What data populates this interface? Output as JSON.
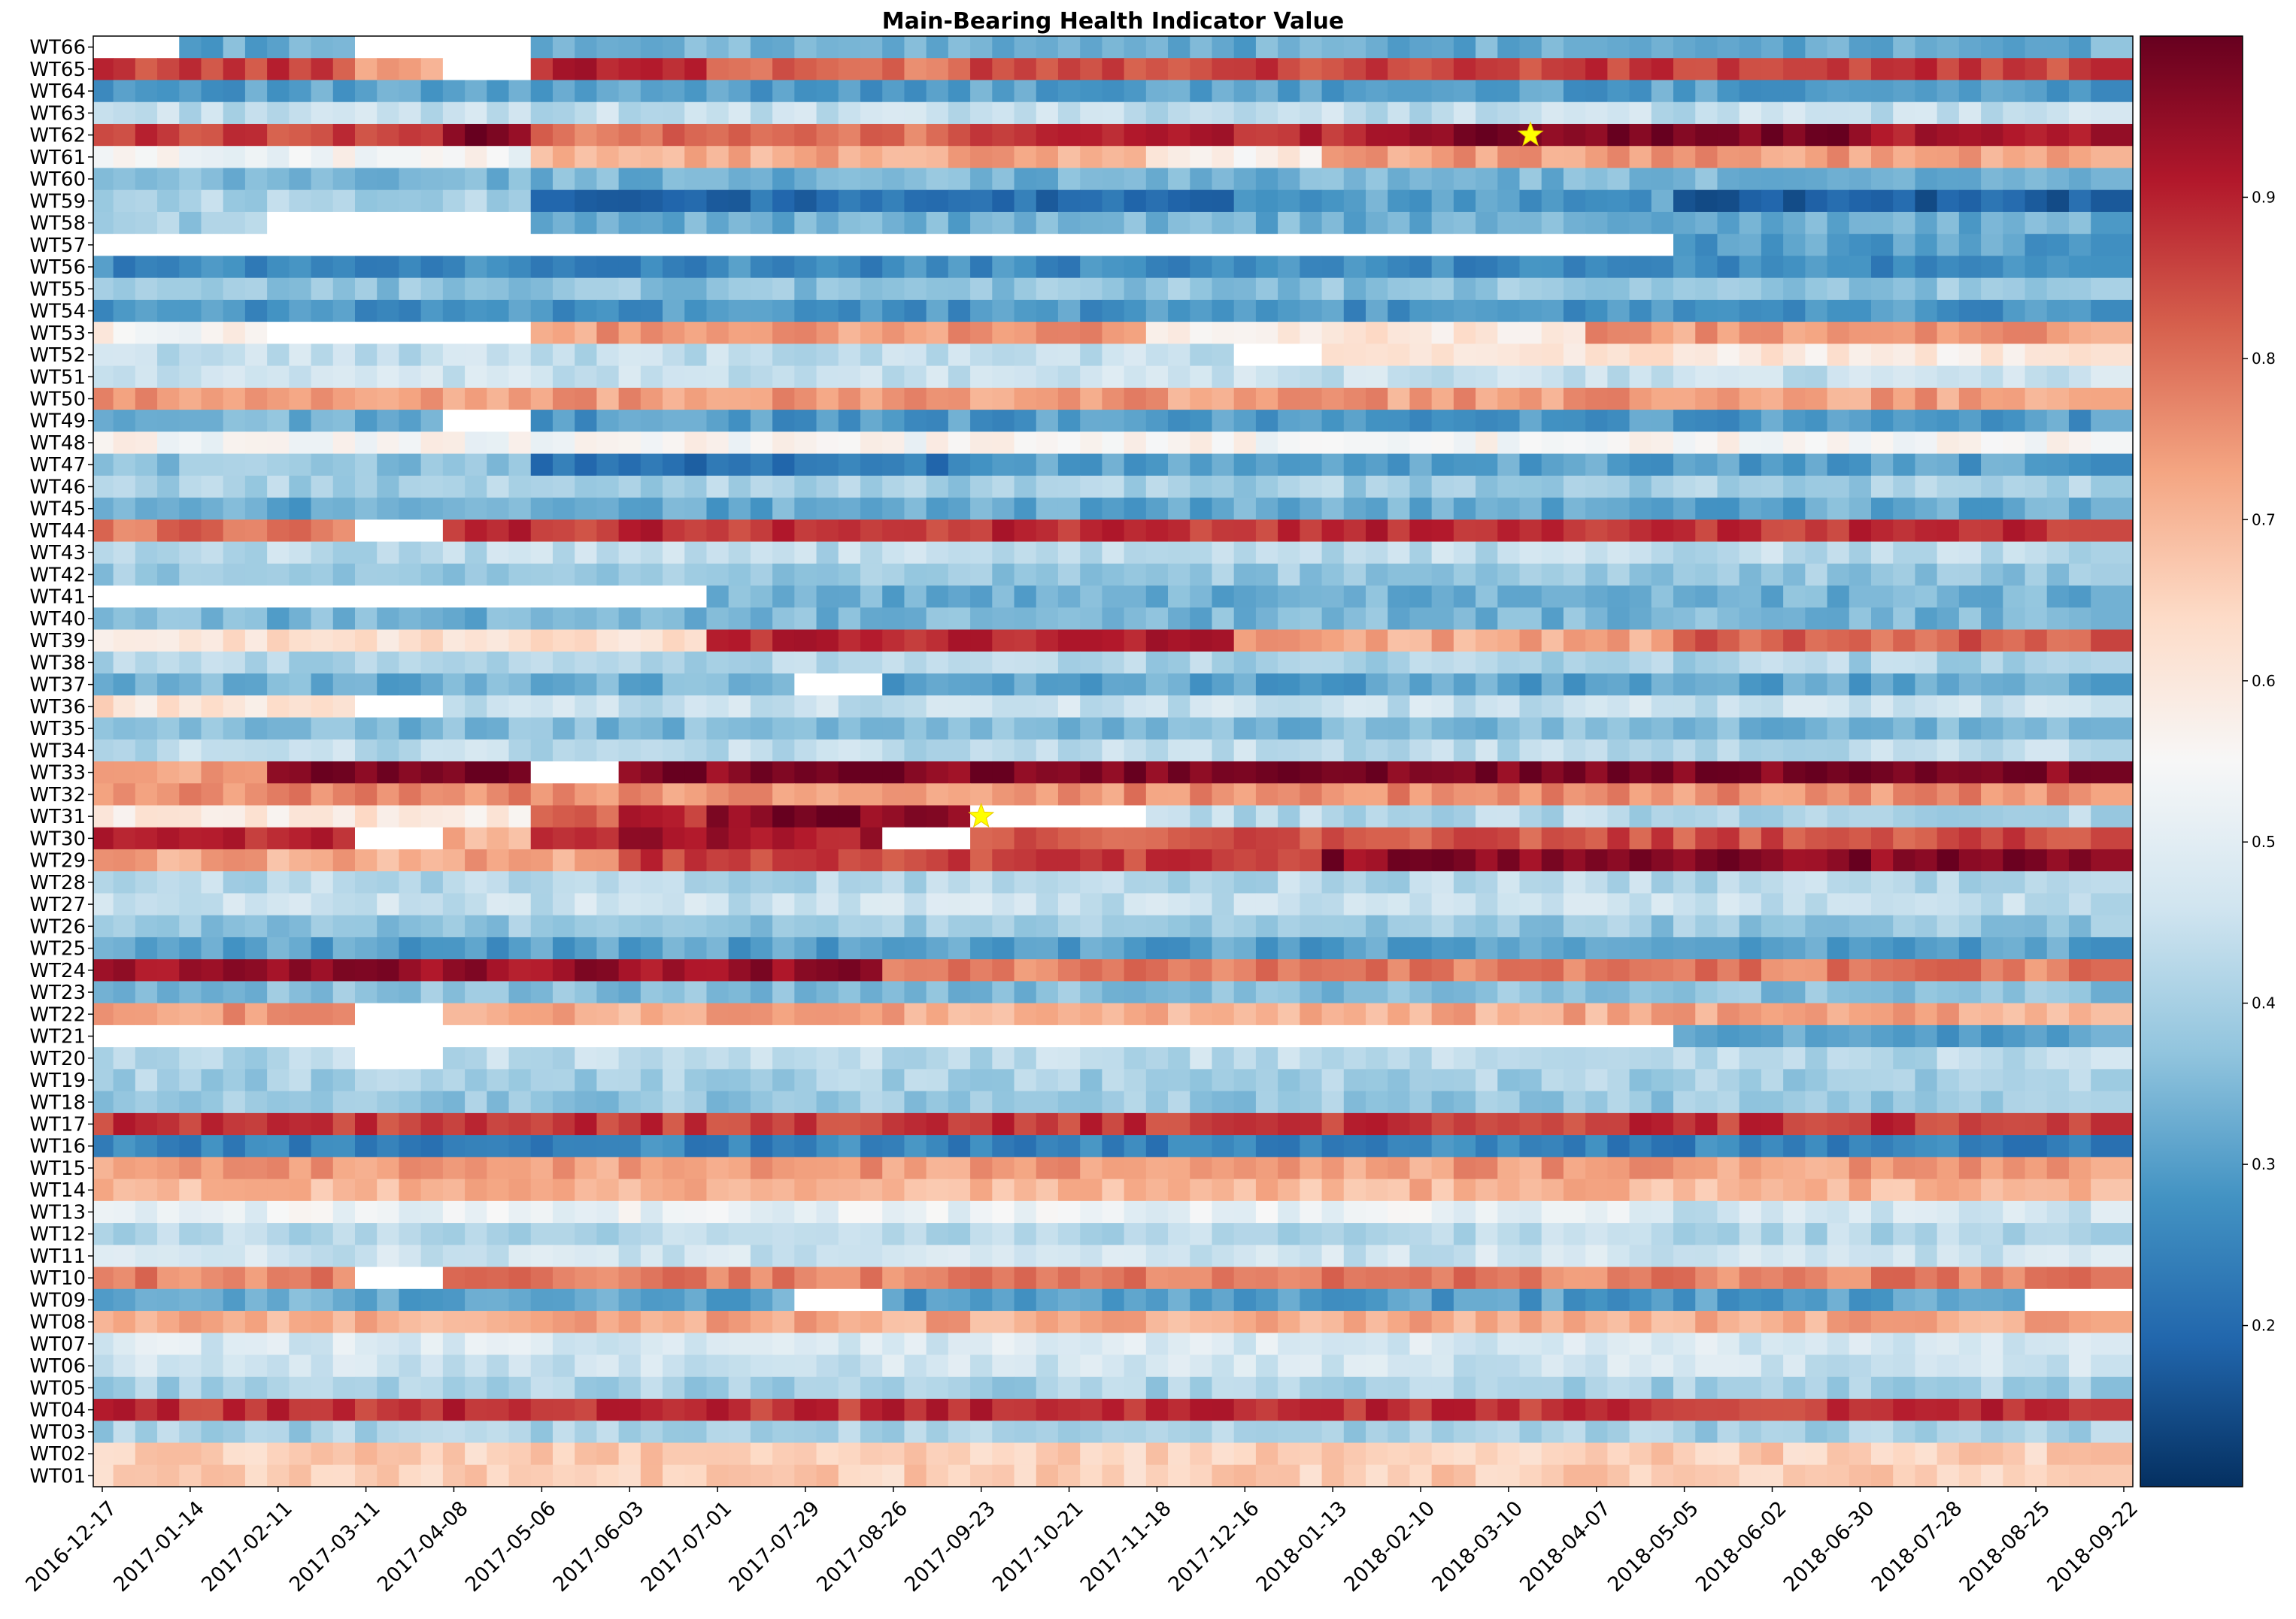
{
  "chart_data": {
    "type": "heatmap",
    "title": "Main-Bearing Health Indicator Value",
    "xlabel": "",
    "ylabel": "",
    "rows_top_to_bottom": [
      "WT66",
      "WT65",
      "WT64",
      "WT63",
      "WT62",
      "WT61",
      "WT60",
      "WT59",
      "WT58",
      "WT57",
      "WT56",
      "WT55",
      "WT54",
      "WT53",
      "WT52",
      "WT51",
      "WT50",
      "WT49",
      "WT48",
      "WT47",
      "WT46",
      "WT45",
      "WT44",
      "WT43",
      "WT42",
      "WT41",
      "WT40",
      "WT39",
      "WT38",
      "WT37",
      "WT36",
      "WT35",
      "WT34",
      "WT33",
      "WT32",
      "WT31",
      "WT30",
      "WT29",
      "WT28",
      "WT27",
      "WT26",
      "WT25",
      "WT24",
      "WT23",
      "WT22",
      "WT21",
      "WT20",
      "WT19",
      "WT18",
      "WT17",
      "WT16",
      "WT15",
      "WT14",
      "WT13",
      "WT12",
      "WT11",
      "WT10",
      "WT09",
      "WT08",
      "WT07",
      "WT06",
      "WT05",
      "WT04",
      "WT03",
      "WT02",
      "WT01"
    ],
    "x_tick_labels": [
      "2016-12-17",
      "2017-01-14",
      "2017-02-11",
      "2017-03-11",
      "2017-04-08",
      "2017-05-06",
      "2017-06-03",
      "2017-07-01",
      "2017-07-29",
      "2017-08-26",
      "2017-09-23",
      "2017-10-21",
      "2017-11-18",
      "2017-12-16",
      "2018-01-13",
      "2018-02-10",
      "2018-03-10",
      "2018-04-07",
      "2018-05-05",
      "2018-06-02",
      "2018-06-30",
      "2018-07-28",
      "2018-08-25",
      "2018-09-22"
    ],
    "x_start": "2016-12-17",
    "x_end": "2018-09-22",
    "colormap": "RdBu_r",
    "colorbar": {
      "min": 0.1,
      "max": 1.0,
      "ticks": [
        0.2,
        0.3,
        0.4,
        0.5,
        0.6,
        0.7,
        0.8,
        0.9
      ],
      "tick_labels": [
        "0.2",
        "0.3",
        "0.4",
        "0.5",
        "0.6",
        "0.7",
        "0.8",
        "0.9"
      ],
      "stops": [
        "#053061",
        "#2166ac",
        "#4393c3",
        "#92c5de",
        "#d1e5f0",
        "#f7f7f7",
        "#fddbc7",
        "#f4a582",
        "#d6604d",
        "#b2182b",
        "#67001f"
      ]
    },
    "missing_color": "#ffffff",
    "markers": [
      {
        "turbine": "WT62",
        "date": "2018-03-17",
        "symbol": "star",
        "color": "#ffff00"
      },
      {
        "turbine": "WT31",
        "date": "2017-09-23",
        "symbol": "star",
        "color": "#ffff00"
      }
    ],
    "row_segments": {
      "WT66": [
        [
          "2016-12-17",
          "2017-01-14",
          null
        ],
        [
          "2017-01-14",
          "2017-03-11",
          0.32
        ],
        [
          "2017-03-11",
          "2017-05-06",
          null
        ],
        [
          "2017-05-06",
          "2018-09-22",
          0.33
        ]
      ],
      "WT65": [
        [
          "2016-12-17",
          "2017-03-11",
          0.86
        ],
        [
          "2017-03-11",
          "2017-04-08",
          0.74
        ],
        [
          "2017-04-08",
          "2017-05-06",
          null
        ],
        [
          "2017-05-06",
          "2017-07-01",
          0.9
        ],
        [
          "2017-07-01",
          "2017-09-23",
          0.8
        ],
        [
          "2017-09-23",
          "2018-09-22",
          0.86
        ]
      ],
      "WT64": [
        [
          "2016-12-17",
          "2018-09-22",
          0.3
        ]
      ],
      "WT63": [
        [
          "2016-12-17",
          "2018-09-22",
          0.44
        ]
      ],
      "WT62": [
        [
          "2016-12-17",
          "2017-04-08",
          0.86
        ],
        [
          "2017-04-08",
          "2017-05-06",
          0.97
        ],
        [
          "2017-05-06",
          "2017-09-23",
          0.8
        ],
        [
          "2017-09-23",
          "2018-02-10",
          0.9
        ],
        [
          "2018-02-10",
          "2018-06-30",
          0.98
        ],
        [
          "2018-06-30",
          "2018-09-22",
          0.93
        ]
      ],
      "WT61": [
        [
          "2016-12-17",
          "2017-05-06",
          0.54
        ],
        [
          "2017-05-06",
          "2017-11-18",
          0.72
        ],
        [
          "2017-11-18",
          "2018-01-13",
          0.58
        ],
        [
          "2018-01-13",
          "2018-09-22",
          0.74
        ]
      ],
      "WT60": [
        [
          "2016-12-17",
          "2018-09-22",
          0.34
        ]
      ],
      "WT59": [
        [
          "2016-12-17",
          "2017-05-06",
          0.41
        ],
        [
          "2017-05-06",
          "2017-12-16",
          0.2
        ],
        [
          "2017-12-16",
          "2018-05-05",
          0.3
        ],
        [
          "2018-05-05",
          "2018-09-22",
          0.18
        ]
      ],
      "WT58": [
        [
          "2016-12-17",
          "2017-02-11",
          0.4
        ],
        [
          "2017-02-11",
          "2017-05-06",
          null
        ],
        [
          "2017-05-06",
          "2018-09-22",
          0.33
        ]
      ],
      "WT57": [
        [
          "2016-12-17",
          "2018-05-05",
          null
        ],
        [
          "2018-05-05",
          "2018-09-22",
          0.3
        ]
      ],
      "WT56": [
        [
          "2016-12-17",
          "2018-09-22",
          0.26
        ]
      ],
      "WT55": [
        [
          "2016-12-17",
          "2018-09-22",
          0.37
        ]
      ],
      "WT54": [
        [
          "2016-12-17",
          "2018-09-22",
          0.28
        ]
      ],
      "WT53": [
        [
          "2016-12-17",
          "2017-02-11",
          0.56
        ],
        [
          "2017-02-11",
          "2017-05-06",
          null
        ],
        [
          "2017-05-06",
          "2017-11-18",
          0.74
        ],
        [
          "2017-11-18",
          "2018-04-07",
          0.6
        ],
        [
          "2018-04-07",
          "2018-09-22",
          0.74
        ]
      ],
      "WT52": [
        [
          "2016-12-17",
          "2017-12-16",
          0.44
        ],
        [
          "2017-12-16",
          "2018-01-13",
          null
        ],
        [
          "2018-01-13",
          "2018-09-22",
          0.6
        ]
      ],
      "WT51": [
        [
          "2016-12-17",
          "2018-09-22",
          0.45
        ]
      ],
      "WT50": [
        [
          "2016-12-17",
          "2018-09-22",
          0.74
        ]
      ],
      "WT49": [
        [
          "2016-12-17",
          "2017-04-08",
          0.33
        ],
        [
          "2017-04-08",
          "2017-05-06",
          null
        ],
        [
          "2017-05-06",
          "2018-09-22",
          0.29
        ]
      ],
      "WT48": [
        [
          "2016-12-17",
          "2018-09-22",
          0.55
        ]
      ],
      "WT47": [
        [
          "2016-12-17",
          "2017-05-06",
          0.37
        ],
        [
          "2017-05-06",
          "2017-09-23",
          0.22
        ],
        [
          "2017-09-23",
          "2018-09-22",
          0.3
        ]
      ],
      "WT46": [
        [
          "2016-12-17",
          "2018-09-22",
          0.4
        ]
      ],
      "WT45": [
        [
          "2016-12-17",
          "2018-09-22",
          0.32
        ]
      ],
      "WT44": [
        [
          "2016-12-17",
          "2017-03-11",
          0.8
        ],
        [
          "2017-03-11",
          "2017-04-08",
          null
        ],
        [
          "2017-04-08",
          "2018-09-22",
          0.88
        ]
      ],
      "WT43": [
        [
          "2016-12-17",
          "2018-09-22",
          0.43
        ]
      ],
      "WT42": [
        [
          "2016-12-17",
          "2018-09-22",
          0.38
        ]
      ],
      "WT41": [
        [
          "2016-12-17",
          "2017-07-01",
          null
        ],
        [
          "2017-07-01",
          "2018-09-22",
          0.33
        ]
      ],
      "WT40": [
        [
          "2016-12-17",
          "2018-09-22",
          0.34
        ]
      ],
      "WT39": [
        [
          "2016-12-17",
          "2017-07-01",
          0.62
        ],
        [
          "2017-07-01",
          "2017-12-16",
          0.9
        ],
        [
          "2017-12-16",
          "2018-05-05",
          0.72
        ],
        [
          "2018-05-05",
          "2018-09-22",
          0.82
        ]
      ],
      "WT38": [
        [
          "2016-12-17",
          "2018-09-22",
          0.41
        ]
      ],
      "WT37": [
        [
          "2016-12-17",
          "2017-07-29",
          0.33
        ],
        [
          "2017-07-29",
          "2017-08-26",
          null
        ],
        [
          "2017-08-26",
          "2018-09-22",
          0.31
        ]
      ],
      "WT36": [
        [
          "2016-12-17",
          "2017-03-11",
          0.62
        ],
        [
          "2017-03-11",
          "2017-04-08",
          null
        ],
        [
          "2017-04-08",
          "2018-09-22",
          0.45
        ]
      ],
      "WT35": [
        [
          "2016-12-17",
          "2018-09-22",
          0.35
        ]
      ],
      "WT34": [
        [
          "2016-12-17",
          "2018-09-22",
          0.43
        ]
      ],
      "WT33": [
        [
          "2016-12-17",
          "2017-02-11",
          0.75
        ],
        [
          "2017-02-11",
          "2017-05-06",
          0.97
        ],
        [
          "2017-05-06",
          "2017-06-03",
          null
        ],
        [
          "2017-06-03",
          "2018-09-22",
          0.97
        ]
      ],
      "WT32": [
        [
          "2016-12-17",
          "2018-09-22",
          0.76
        ]
      ],
      "WT31": [
        [
          "2016-12-17",
          "2017-05-06",
          0.6
        ],
        [
          "2017-05-06",
          "2017-06-03",
          0.8
        ],
        [
          "2017-06-03",
          "2017-07-01",
          0.88
        ],
        [
          "2017-07-01",
          "2017-09-23",
          0.97
        ],
        [
          "2017-09-23",
          "2017-11-18",
          null
        ],
        [
          "2017-11-18",
          "2018-09-22",
          0.42
        ]
      ],
      "WT30": [
        [
          "2016-12-17",
          "2017-03-11",
          0.88
        ],
        [
          "2017-03-11",
          "2017-04-08",
          null
        ],
        [
          "2017-04-08",
          "2017-05-06",
          0.72
        ],
        [
          "2017-05-06",
          "2017-08-26",
          0.92
        ],
        [
          "2017-08-26",
          "2017-09-23",
          null
        ],
        [
          "2017-09-23",
          "2018-09-22",
          0.84
        ]
      ],
      "WT29": [
        [
          "2016-12-17",
          "2017-06-03",
          0.72
        ],
        [
          "2017-06-03",
          "2018-01-13",
          0.86
        ],
        [
          "2018-01-13",
          "2018-09-22",
          0.96
        ]
      ],
      "WT28": [
        [
          "2016-12-17",
          "2018-09-22",
          0.42
        ]
      ],
      "WT27": [
        [
          "2016-12-17",
          "2018-09-22",
          0.45
        ]
      ],
      "WT26": [
        [
          "2016-12-17",
          "2018-09-22",
          0.38
        ]
      ],
      "WT25": [
        [
          "2016-12-17",
          "2018-09-22",
          0.3
        ]
      ],
      "WT24": [
        [
          "2016-12-17",
          "2017-08-26",
          0.94
        ],
        [
          "2017-08-26",
          "2018-09-22",
          0.78
        ]
      ],
      "WT23": [
        [
          "2016-12-17",
          "2018-09-22",
          0.36
        ]
      ],
      "WT22": [
        [
          "2016-12-17",
          "2017-03-11",
          0.74
        ],
        [
          "2017-03-11",
          "2017-04-08",
          null
        ],
        [
          "2017-04-08",
          "2018-09-22",
          0.72
        ]
      ],
      "WT21": [
        [
          "2016-12-17",
          "2018-05-05",
          null
        ],
        [
          "2018-05-05",
          "2018-09-22",
          0.3
        ]
      ],
      "WT20": [
        [
          "2016-12-17",
          "2017-03-11",
          0.42
        ],
        [
          "2017-03-11",
          "2017-04-08",
          null
        ],
        [
          "2017-04-08",
          "2018-09-22",
          0.43
        ]
      ],
      "WT19": [
        [
          "2016-12-17",
          "2018-09-22",
          0.4
        ]
      ],
      "WT18": [
        [
          "2016-12-17",
          "2018-09-22",
          0.38
        ]
      ],
      "WT17": [
        [
          "2016-12-17",
          "2018-09-22",
          0.87
        ]
      ],
      "WT16": [
        [
          "2016-12-17",
          "2018-09-22",
          0.25
        ]
      ],
      "WT15": [
        [
          "2016-12-17",
          "2018-09-22",
          0.74
        ]
      ],
      "WT14": [
        [
          "2016-12-17",
          "2018-09-22",
          0.7
        ]
      ],
      "WT13": [
        [
          "2016-12-17",
          "2018-05-05",
          0.52
        ],
        [
          "2018-05-05",
          "2018-09-22",
          0.46
        ]
      ],
      "WT12": [
        [
          "2016-12-17",
          "2018-09-22",
          0.42
        ]
      ],
      "WT11": [
        [
          "2016-12-17",
          "2018-09-22",
          0.46
        ]
      ],
      "WT10": [
        [
          "2016-12-17",
          "2017-03-11",
          0.78
        ],
        [
          "2017-03-11",
          "2017-04-08",
          null
        ],
        [
          "2017-04-08",
          "2018-09-22",
          0.78
        ]
      ],
      "WT09": [
        [
          "2016-12-17",
          "2017-07-29",
          0.32
        ],
        [
          "2017-07-29",
          "2017-08-26",
          null
        ],
        [
          "2017-08-26",
          "2018-08-25",
          0.3
        ],
        [
          "2018-08-25",
          "2018-09-22",
          null
        ]
      ],
      "WT08": [
        [
          "2016-12-17",
          "2018-09-22",
          0.72
        ]
      ],
      "WT07": [
        [
          "2016-12-17",
          "2018-09-22",
          0.48
        ]
      ],
      "WT06": [
        [
          "2016-12-17",
          "2018-09-22",
          0.46
        ]
      ],
      "WT05": [
        [
          "2016-12-17",
          "2018-09-22",
          0.4
        ]
      ],
      "WT04": [
        [
          "2016-12-17",
          "2018-09-22",
          0.88
        ]
      ],
      "WT03": [
        [
          "2016-12-17",
          "2018-09-22",
          0.4
        ]
      ],
      "WT02": [
        [
          "2016-12-17",
          "2018-09-22",
          0.66
        ]
      ],
      "WT01": [
        [
          "2016-12-17",
          "2018-09-22",
          0.66
        ]
      ]
    }
  }
}
